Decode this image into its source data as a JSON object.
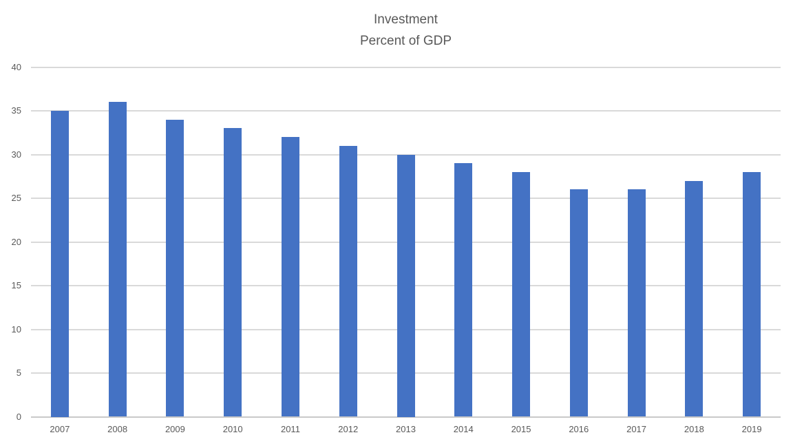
{
  "chart_data": {
    "type": "bar",
    "title": "Investment",
    "subtitle": "Percent of GDP",
    "categories": [
      "2007",
      "2008",
      "2009",
      "2010",
      "2011",
      "2012",
      "2013",
      "2014",
      "2015",
      "2016",
      "2017",
      "2018",
      "2019"
    ],
    "values": [
      35,
      36,
      34,
      33,
      32,
      31,
      30,
      29,
      28,
      26,
      26,
      27,
      28
    ],
    "xlabel": "",
    "ylabel": "",
    "ylim": [
      0,
      40
    ],
    "yticks": [
      0,
      5,
      10,
      15,
      20,
      25,
      30,
      35,
      40
    ],
    "grid": "horizontal",
    "legend": "none",
    "bar_color": "#4472C4",
    "gridline_color": "#D9D9D9",
    "text_color": "#595959"
  }
}
